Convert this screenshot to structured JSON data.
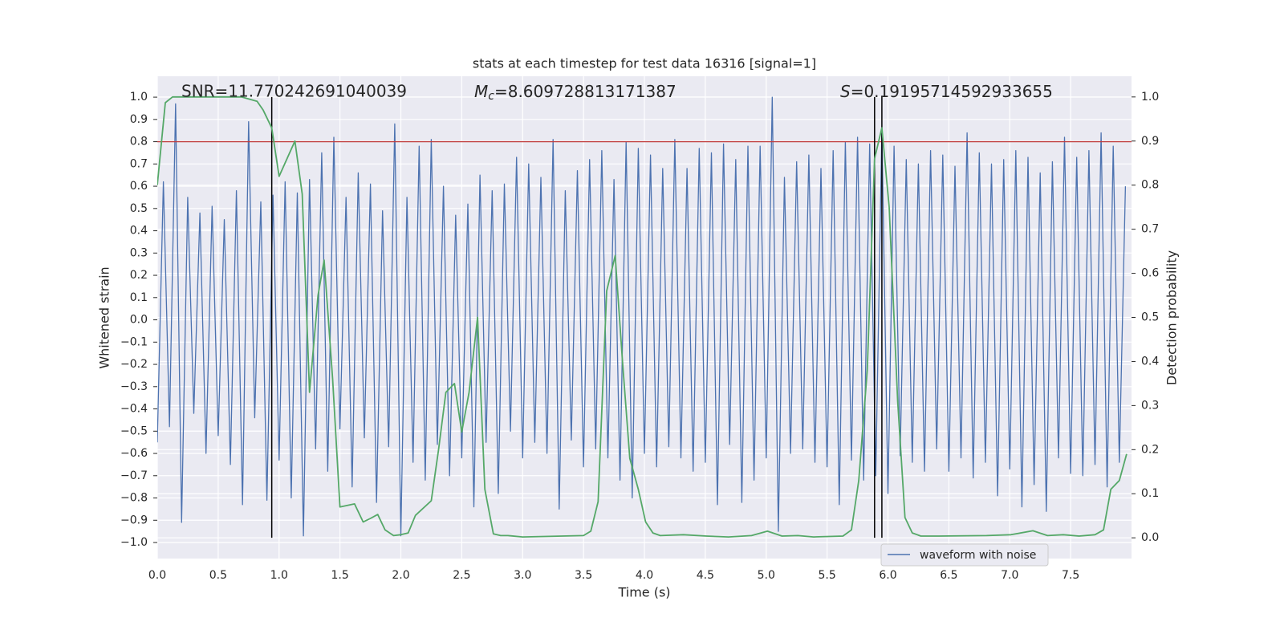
{
  "chart_data": {
    "type": "line",
    "title": "stats at each timestep for test data 16316 [signal=1]",
    "x_label": "Time (s)",
    "y_label": "Whitened strain",
    "y2_label": "Detection probability",
    "annotations": [
      {
        "text": "SNR=11.770242691040039"
      },
      {
        "symbol": "M",
        "subscript": "c",
        "text": "=8.609728813171387"
      },
      {
        "symbol": "S",
        "text": "=0.19195714592933655"
      }
    ],
    "xlim": [
      0,
      8
    ],
    "ylim": [
      -1.072,
      1.094
    ],
    "y2lim": [
      -0.047,
      1.047
    ],
    "xticks": [
      {
        "value": 0,
        "label": "0.0"
      },
      {
        "value": 0.5,
        "label": "0.5"
      },
      {
        "value": 1,
        "label": "1.0"
      },
      {
        "value": 1.5,
        "label": "1.5"
      },
      {
        "value": 2,
        "label": "2.0"
      },
      {
        "value": 2.5,
        "label": "2.5"
      },
      {
        "value": 3,
        "label": "3.0"
      },
      {
        "value": 3.5,
        "label": "3.5"
      },
      {
        "value": 4,
        "label": "4.0"
      },
      {
        "value": 4.5,
        "label": "4.5"
      },
      {
        "value": 5,
        "label": "5.0"
      },
      {
        "value": 5.5,
        "label": "5.5"
      },
      {
        "value": 6,
        "label": "6.0"
      },
      {
        "value": 6.5,
        "label": "6.5"
      },
      {
        "value": 7,
        "label": "7.0"
      },
      {
        "value": 7.5,
        "label": "7.5"
      }
    ],
    "yticks": [
      {
        "value": -1,
        "label": "−1.0"
      },
      {
        "value": -0.9,
        "label": "−0.9"
      },
      {
        "value": -0.8,
        "label": "−0.8"
      },
      {
        "value": -0.7,
        "label": "−0.7"
      },
      {
        "value": -0.6,
        "label": "−0.6"
      },
      {
        "value": -0.5,
        "label": "−0.5"
      },
      {
        "value": -0.4,
        "label": "−0.4"
      },
      {
        "value": -0.3,
        "label": "−0.3"
      },
      {
        "value": -0.2,
        "label": "−0.2"
      },
      {
        "value": -0.1,
        "label": "−0.1"
      },
      {
        "value": 0,
        "label": "0.0"
      },
      {
        "value": 0.1,
        "label": "0.1"
      },
      {
        "value": 0.2,
        "label": "0.2"
      },
      {
        "value": 0.3,
        "label": "0.3"
      },
      {
        "value": 0.4,
        "label": "0.4"
      },
      {
        "value": 0.5,
        "label": "0.5"
      },
      {
        "value": 0.6,
        "label": "0.6"
      },
      {
        "value": 0.7,
        "label": "0.7"
      },
      {
        "value": 0.8,
        "label": "0.8"
      },
      {
        "value": 0.9,
        "label": "0.9"
      },
      {
        "value": 1,
        "label": "1.0"
      }
    ],
    "y2ticks": [
      {
        "value": 0,
        "label": "0.0"
      },
      {
        "value": 0.1,
        "label": "0.1"
      },
      {
        "value": 0.2,
        "label": "0.2"
      },
      {
        "value": 0.3,
        "label": "0.3"
      },
      {
        "value": 0.4,
        "label": "0.4"
      },
      {
        "value": 0.5,
        "label": "0.5"
      },
      {
        "value": 0.6,
        "label": "0.6"
      },
      {
        "value": 0.7,
        "label": "0.7"
      },
      {
        "value": 0.8,
        "label": "0.8"
      },
      {
        "value": 0.9,
        "label": "0.9"
      },
      {
        "value": 1,
        "label": "1.0"
      }
    ],
    "grid": true,
    "hline": {
      "value": 0.8,
      "color": "#c03d3e"
    },
    "vlines": {
      "x": [
        0.94,
        5.89,
        5.95
      ],
      "color": "#000000"
    },
    "series": [
      {
        "name": "waveform with noise",
        "color": "#4c72b0",
        "x": [
          0,
          0.05,
          0.1,
          0.15,
          0.2,
          0.25,
          0.3,
          0.35,
          0.4,
          0.45,
          0.5,
          0.55,
          0.6,
          0.65,
          0.7,
          0.75,
          0.8,
          0.85,
          0.9,
          0.95,
          1,
          1.05,
          1.1,
          1.15,
          1.2,
          1.25,
          1.3,
          1.35,
          1.4,
          1.45,
          1.5,
          1.55,
          1.6,
          1.65,
          1.7,
          1.75,
          1.8,
          1.85,
          1.9,
          1.95,
          2,
          2.05,
          2.1,
          2.15,
          2.2,
          2.25,
          2.3,
          2.35,
          2.4,
          2.45,
          2.5,
          2.55,
          2.6,
          2.65,
          2.7,
          2.75,
          2.8,
          2.85,
          2.9,
          2.95,
          3,
          3.05,
          3.1,
          3.15,
          3.2,
          3.25,
          3.3,
          3.35,
          3.4,
          3.45,
          3.5,
          3.55,
          3.6,
          3.65,
          3.7,
          3.75,
          3.8,
          3.85,
          3.9,
          3.95,
          4,
          4.05,
          4.1,
          4.15,
          4.2,
          4.25,
          4.3,
          4.35,
          4.4,
          4.45,
          4.5,
          4.55,
          4.6,
          4.65,
          4.7,
          4.75,
          4.8,
          4.85,
          4.9,
          4.95,
          5,
          5.05,
          5.1,
          5.15,
          5.2,
          5.25,
          5.3,
          5.35,
          5.4,
          5.45,
          5.5,
          5.55,
          5.6,
          5.65,
          5.7,
          5.75,
          5.8,
          5.85,
          5.9,
          5.95,
          6,
          6.05,
          6.1,
          6.15,
          6.2,
          6.25,
          6.3,
          6.35,
          6.4,
          6.45,
          6.5,
          6.55,
          6.6,
          6.65,
          6.7,
          6.75,
          6.8,
          6.85,
          6.9,
          6.95,
          7,
          7.05,
          7.1,
          7.15,
          7.2,
          7.25,
          7.3,
          7.35,
          7.4,
          7.45,
          7.5,
          7.55,
          7.6,
          7.65,
          7.7,
          7.75,
          7.8,
          7.85,
          7.9,
          7.95
        ],
        "values": [
          -0.55,
          0.62,
          -0.48,
          0.97,
          -0.91,
          0.55,
          -0.42,
          0.48,
          -0.6,
          0.51,
          -0.52,
          0.45,
          -0.65,
          0.58,
          -0.83,
          0.89,
          -0.44,
          0.53,
          -0.81,
          0.56,
          -0.63,
          0.62,
          -0.8,
          0.57,
          -0.97,
          0.63,
          -0.58,
          0.75,
          -0.68,
          0.82,
          -0.49,
          0.55,
          -0.75,
          0.66,
          -0.53,
          0.61,
          -0.82,
          0.49,
          -0.57,
          0.88,
          -0.97,
          0.55,
          -0.64,
          0.78,
          -0.72,
          0.81,
          -0.56,
          0.6,
          -0.7,
          0.47,
          -0.62,
          0.52,
          -0.84,
          0.65,
          -0.55,
          0.58,
          -0.78,
          0.61,
          -0.5,
          0.73,
          -0.62,
          0.7,
          -0.55,
          0.64,
          -0.6,
          0.81,
          -0.85,
          0.58,
          -0.54,
          0.67,
          -0.66,
          0.72,
          -0.58,
          0.76,
          -0.62,
          0.63,
          -0.72,
          0.8,
          -0.8,
          0.77,
          -0.6,
          0.74,
          -0.66,
          0.68,
          -0.57,
          0.81,
          -0.62,
          0.68,
          -0.68,
          0.77,
          -0.64,
          0.75,
          -0.83,
          0.79,
          -0.56,
          0.72,
          -0.82,
          0.78,
          -0.72,
          0.78,
          -0.62,
          1,
          -0.95,
          0.64,
          -0.6,
          0.71,
          -0.58,
          0.74,
          -0.64,
          0.68,
          -0.66,
          0.76,
          -0.83,
          0.8,
          -0.63,
          0.82,
          -0.72,
          0.79,
          -0.7,
          0.85,
          -0.78,
          0.78,
          -0.61,
          0.72,
          -0.64,
          0.7,
          -0.68,
          0.76,
          -0.58,
          0.74,
          -0.68,
          0.69,
          -0.62,
          0.84,
          -0.71,
          0.75,
          -0.64,
          0.7,
          -0.79,
          0.72,
          -0.67,
          0.76,
          -0.84,
          0.73,
          -0.74,
          0.66,
          -0.86,
          0.71,
          -0.62,
          0.82,
          -0.69,
          0.73,
          -0.7,
          0.76,
          -0.65,
          0.84,
          -0.75,
          0.78,
          -0.64,
          0.6
        ]
      },
      {
        "color": "#55a868",
        "axis": "y2",
        "x": [
          0,
          0.066,
          0.125,
          0.69,
          0.82,
          0.87,
          0.94,
          1,
          1.13,
          1.19,
          1.25,
          1.32,
          1.37,
          1.44,
          1.5,
          1.62,
          1.69,
          1.75,
          1.81,
          1.87,
          1.94,
          2,
          2.06,
          2.12,
          2.25,
          2.31,
          2.37,
          2.44,
          2.5,
          2.56,
          2.63,
          2.69,
          2.76,
          2.82,
          2.88,
          3,
          3.5,
          3.56,
          3.62,
          3.69,
          3.76,
          3.82,
          3.88,
          3.95,
          4.01,
          4.07,
          4.13,
          4.32,
          4.51,
          4.69,
          4.88,
          5.01,
          5.13,
          5.26,
          5.39,
          5.63,
          5.7,
          5.76,
          5.83,
          5.89,
          5.95,
          6.01,
          6.08,
          6.14,
          6.2,
          6.27,
          6.42,
          6.81,
          7.01,
          7.19,
          7.31,
          7.44,
          7.57,
          7.7,
          7.77,
          7.83,
          7.9,
          7.96
        ],
        "values": [
          0.8,
          0.987,
          1,
          1,
          0.99,
          0.97,
          0.93,
          0.82,
          0.9,
          0.78,
          0.33,
          0.55,
          0.63,
          0.36,
          0.07,
          0.077,
          0.036,
          0.044,
          0.053,
          0.018,
          0.005,
          0.007,
          0.011,
          0.051,
          0.084,
          0.2,
          0.33,
          0.35,
          0.24,
          0.33,
          0.5,
          0.11,
          0.009,
          0.005,
          0.005,
          0.002,
          0.005,
          0.015,
          0.082,
          0.56,
          0.64,
          0.4,
          0.18,
          0.11,
          0.036,
          0.011,
          0.005,
          0.007,
          0.004,
          0.002,
          0.005,
          0.015,
          0.004,
          0.005,
          0.002,
          0.004,
          0.018,
          0.13,
          0.38,
          0.86,
          0.93,
          0.75,
          0.31,
          0.046,
          0.011,
          0.004,
          0.004,
          0.005,
          0.007,
          0.016,
          0.005,
          0.007,
          0.004,
          0.007,
          0.018,
          0.11,
          0.13,
          0.19
        ]
      }
    ]
  }
}
